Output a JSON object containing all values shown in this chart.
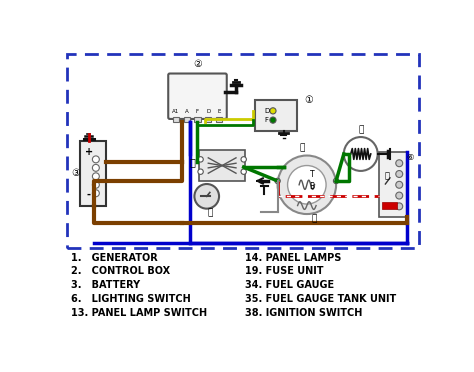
{
  "bg_color": "#ffffff",
  "border_color": "#2233bb",
  "legend_left": [
    "1.   GENERATOR",
    "2.   CONTROL BOX",
    "3.   BATTERY",
    "6.   LIGHTING SWITCH",
    "13. PANEL LAMP SWITCH"
  ],
  "legend_right": [
    "14. PANEL LAMPS",
    "19. FUSE UNIT",
    "34. FUEL GAUGE",
    "35. FUEL GAUGE TANK UNIT",
    "38. IGNITION SWITCH"
  ],
  "brown": "#7B3F00",
  "blue": "#0000cc",
  "green": "#007700",
  "yellow": "#cccc00",
  "red": "#cc0000",
  "black": "#111111",
  "gray": "#888888",
  "darkblue": "#000099"
}
